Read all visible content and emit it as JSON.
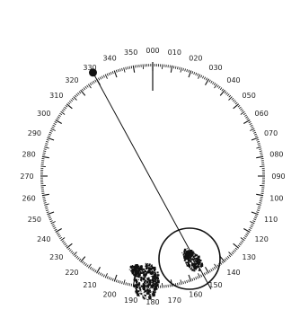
{
  "bearing_labels": [
    {
      "deg": 0,
      "text": "000"
    },
    {
      "deg": 10,
      "text": "010"
    },
    {
      "deg": 20,
      "text": "020"
    },
    {
      "deg": 30,
      "text": "030"
    },
    {
      "deg": 40,
      "text": "040"
    },
    {
      "deg": 50,
      "text": "050"
    },
    {
      "deg": 60,
      "text": "060"
    },
    {
      "deg": 70,
      "text": "070"
    },
    {
      "deg": 80,
      "text": "080"
    },
    {
      "deg": 90,
      "text": "090"
    },
    {
      "deg": 100,
      "text": "100"
    },
    {
      "deg": 110,
      "text": "110"
    },
    {
      "deg": 120,
      "text": "120"
    },
    {
      "deg": 130,
      "text": "130"
    },
    {
      "deg": 140,
      "text": "140"
    },
    {
      "deg": 150,
      "text": "150"
    },
    {
      "deg": 160,
      "text": "160"
    },
    {
      "deg": 170,
      "text": "170"
    },
    {
      "deg": 180,
      "text": "180"
    },
    {
      "deg": 190,
      "text": "190"
    },
    {
      "deg": 200,
      "text": "200"
    },
    {
      "deg": 210,
      "text": "210"
    },
    {
      "deg": 220,
      "text": "220"
    },
    {
      "deg": 230,
      "text": "230"
    },
    {
      "deg": 240,
      "text": "240"
    },
    {
      "deg": 250,
      "text": "250"
    },
    {
      "deg": 260,
      "text": "260"
    },
    {
      "deg": 270,
      "text": "270"
    },
    {
      "deg": 280,
      "text": "280"
    },
    {
      "deg": 290,
      "text": "290"
    },
    {
      "deg": 300,
      "text": "300"
    },
    {
      "deg": 310,
      "text": "310"
    },
    {
      "deg": 320,
      "text": "320"
    },
    {
      "deg": 330,
      "text": "330"
    },
    {
      "deg": 340,
      "text": "340"
    },
    {
      "deg": 350,
      "text": "350"
    }
  ],
  "bearing_line_deg": 330,
  "heading_marker_deg": 0,
  "colors": {
    "ink": "#111111",
    "label": "#222222",
    "background": "#ffffff"
  }
}
